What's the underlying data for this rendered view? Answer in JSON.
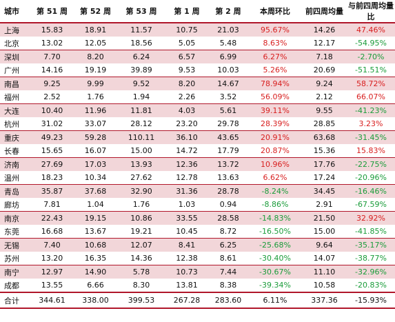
{
  "headers": [
    "城市",
    "第 51 周",
    "第 52 周",
    "第 53 周",
    "第 1 周",
    "第 2 周",
    "本周环比",
    "前四周均量",
    "与前四周均量比"
  ],
  "rows": [
    {
      "city": "上海",
      "w51": "15.83",
      "w52": "18.91",
      "w53": "11.57",
      "w1": "10.75",
      "w2": "21.03",
      "wow": "95.67%",
      "avg4": "14.26",
      "vs_avg": "47.46%"
    },
    {
      "city": "北京",
      "w51": "13.02",
      "w52": "12.05",
      "w53": "18.56",
      "w1": "5.05",
      "w2": "5.48",
      "wow": "8.63%",
      "avg4": "12.17",
      "vs_avg": "-54.95%"
    },
    {
      "city": "深圳",
      "w51": "7.70",
      "w52": "8.20",
      "w53": "6.24",
      "w1": "6.57",
      "w2": "6.99",
      "wow": "6.27%",
      "avg4": "7.18",
      "vs_avg": "-2.70%"
    },
    {
      "city": "广州",
      "w51": "14.16",
      "w52": "19.19",
      "w53": "39.89",
      "w1": "9.53",
      "w2": "10.03",
      "wow": "5.26%",
      "avg4": "20.69",
      "vs_avg": "-51.51%"
    },
    {
      "city": "南昌",
      "w51": "9.25",
      "w52": "9.99",
      "w53": "9.52",
      "w1": "8.20",
      "w2": "14.67",
      "wow": "78.94%",
      "avg4": "9.24",
      "vs_avg": "58.72%"
    },
    {
      "city": "福州",
      "w51": "2.52",
      "w52": "1.76",
      "w53": "1.94",
      "w1": "2.26",
      "w2": "3.52",
      "wow": "56.09%",
      "avg4": "2.12",
      "vs_avg": "66.07%"
    },
    {
      "city": "大连",
      "w51": "10.40",
      "w52": "11.96",
      "w53": "11.81",
      "w1": "4.03",
      "w2": "5.61",
      "wow": "39.11%",
      "avg4": "9.55",
      "vs_avg": "-41.23%"
    },
    {
      "city": "杭州",
      "w51": "31.02",
      "w52": "33.07",
      "w53": "28.12",
      "w1": "23.20",
      "w2": "29.78",
      "wow": "28.39%",
      "avg4": "28.85",
      "vs_avg": "3.23%"
    },
    {
      "city": "重庆",
      "w51": "49.23",
      "w52": "59.28",
      "w53": "110.11",
      "w1": "36.10",
      "w2": "43.65",
      "wow": "20.91%",
      "avg4": "63.68",
      "vs_avg": "-31.45%"
    },
    {
      "city": "长春",
      "w51": "15.65",
      "w52": "16.07",
      "w53": "15.00",
      "w1": "14.72",
      "w2": "17.79",
      "wow": "20.87%",
      "avg4": "15.36",
      "vs_avg": "15.83%"
    },
    {
      "city": "济南",
      "w51": "27.69",
      "w52": "17.03",
      "w53": "13.93",
      "w1": "12.36",
      "w2": "13.72",
      "wow": "10.96%",
      "avg4": "17.76",
      "vs_avg": "-22.75%"
    },
    {
      "city": "温州",
      "w51": "18.23",
      "w52": "10.34",
      "w53": "27.62",
      "w1": "12.78",
      "w2": "13.63",
      "wow": "6.62%",
      "avg4": "17.24",
      "vs_avg": "-20.96%"
    },
    {
      "city": "青岛",
      "w51": "35.87",
      "w52": "37.68",
      "w53": "32.90",
      "w1": "31.36",
      "w2": "28.78",
      "wow": "-8.24%",
      "avg4": "34.45",
      "vs_avg": "-16.46%"
    },
    {
      "city": "廊坊",
      "w51": "7.81",
      "w52": "1.04",
      "w53": "1.76",
      "w1": "1.03",
      "w2": "0.94",
      "wow": "-8.86%",
      "avg4": "2.91",
      "vs_avg": "-67.59%"
    },
    {
      "city": "南京",
      "w51": "22.43",
      "w52": "19.15",
      "w53": "10.86",
      "w1": "33.55",
      "w2": "28.58",
      "wow": "-14.83%",
      "avg4": "21.50",
      "vs_avg": "32.92%"
    },
    {
      "city": "东莞",
      "w51": "16.68",
      "w52": "13.67",
      "w53": "19.21",
      "w1": "10.45",
      "w2": "8.72",
      "wow": "-16.50%",
      "avg4": "15.00",
      "vs_avg": "-41.85%"
    },
    {
      "city": "无锡",
      "w51": "7.40",
      "w52": "10.68",
      "w53": "12.07",
      "w1": "8.41",
      "w2": "6.25",
      "wow": "-25.68%",
      "avg4": "9.64",
      "vs_avg": "-35.17%"
    },
    {
      "city": "苏州",
      "w51": "13.20",
      "w52": "16.35",
      "w53": "14.36",
      "w1": "12.38",
      "w2": "8.61",
      "wow": "-30.40%",
      "avg4": "14.07",
      "vs_avg": "-38.77%"
    },
    {
      "city": "南宁",
      "w51": "12.97",
      "w52": "14.90",
      "w53": "5.78",
      "w1": "10.73",
      "w2": "7.44",
      "wow": "-30.67%",
      "avg4": "11.10",
      "vs_avg": "-32.96%"
    },
    {
      "city": "成都",
      "w51": "13.55",
      "w52": "6.66",
      "w53": "8.30",
      "w1": "13.81",
      "w2": "8.38",
      "wow": "-39.34%",
      "avg4": "10.58",
      "vs_avg": "-20.83%"
    }
  ],
  "total": {
    "city": "合计",
    "w51": "344.61",
    "w52": "338.00",
    "w53": "399.53",
    "w1": "267.28",
    "w2": "283.60",
    "wow": "6.11%",
    "avg4": "337.36",
    "vs_avg": "-15.93%"
  },
  "colors": {
    "positive": "#d81e1e",
    "negative": "#1a9c3a",
    "band": "#f2d6d9",
    "rule": "#b0162a"
  }
}
